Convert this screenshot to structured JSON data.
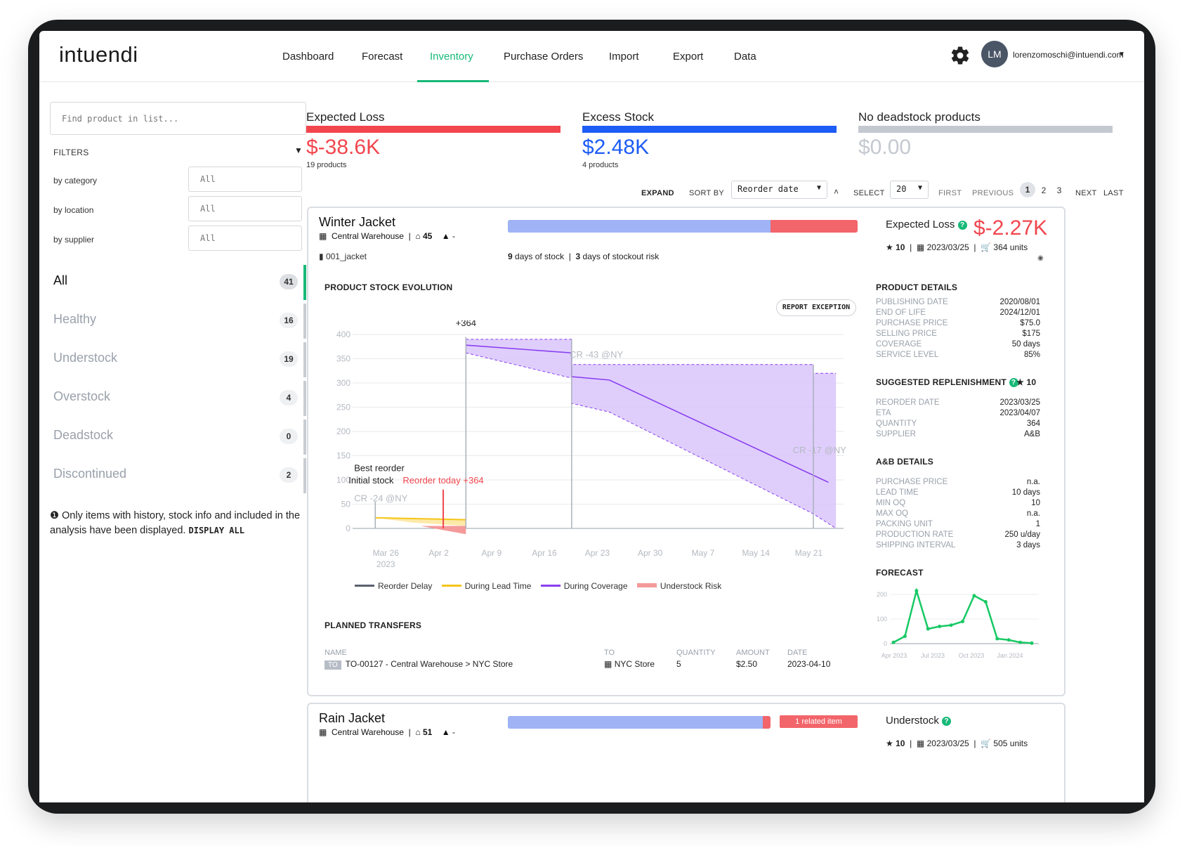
{
  "app": {
    "logo": "intuendi",
    "nav": [
      "Dashboard",
      "Forecast",
      "Inventory",
      "Purchase Orders",
      "Import",
      "Export",
      "Data"
    ],
    "active_nav": "Inventory",
    "user_initials": "LM",
    "user_email": "lorenzomoschi@intuendi.com",
    "accent_color": "#17b978"
  },
  "sidebar": {
    "search_placeholder": "Find product in list...",
    "filters_label": "FILTERS",
    "filters": [
      {
        "label": "by category",
        "value": "All"
      },
      {
        "label": "by location",
        "value": "All"
      },
      {
        "label": "by supplier",
        "value": "All"
      }
    ],
    "categories": [
      {
        "label": "All",
        "count": "41",
        "active": true
      },
      {
        "label": "Healthy",
        "count": "16"
      },
      {
        "label": "Understock",
        "count": "19"
      },
      {
        "label": "Overstock",
        "count": "4"
      },
      {
        "label": "Deadstock",
        "count": "0"
      },
      {
        "label": "Discontinued",
        "count": "2"
      }
    ],
    "note": "Only items with history, stock info and included in the analysis have been displayed.",
    "note_action": "DISPLAY ALL"
  },
  "kpis": [
    {
      "title": "Expected Loss",
      "value": "$-38.6K",
      "sub": "19 products",
      "color": "#f2464e"
    },
    {
      "title": "Excess Stock",
      "value": "$2.48K",
      "sub": "4 products",
      "color": "#1d5cf5"
    },
    {
      "title": "No deadstock products",
      "value": "$0.00",
      "sub": "",
      "color": "#c4c9d0"
    }
  ],
  "toolbar": {
    "expand": "EXPAND",
    "sort_by": "SORT BY",
    "sort_value": "Reorder date",
    "select": "SELECT",
    "select_value": "20",
    "first": "FIRST",
    "previous": "PREVIOUS",
    "pages": [
      "1",
      "2",
      "3"
    ],
    "current_page": "1",
    "next": "NEXT",
    "last": "LAST"
  },
  "product": {
    "name": "Winter Jacket",
    "warehouse": "Central Warehouse",
    "stock_count": "45",
    "third": "-",
    "sku": "001_jacket",
    "days_of_stock": "9",
    "days_of_stock_label": "days of stock",
    "days_stockout": "3",
    "days_stockout_label": "days of stockout risk",
    "stock_bar_fraction": 0.75,
    "status_label": "Expected Loss",
    "status_value": "$-2.27K",
    "rating": "10",
    "date": "2023/03/25",
    "units": "364 units",
    "report_exception": "REPORT EXCEPTION",
    "stock_evolution_title": "PRODUCT STOCK EVOLUTION",
    "product_details_title": "PRODUCT DETAILS",
    "product_details": [
      {
        "k": "PUBLISHING DATE",
        "v": "2020/08/01"
      },
      {
        "k": "END OF LIFE",
        "v": "2024/12/01"
      },
      {
        "k": "PURCHASE PRICE",
        "v": "$75.0"
      },
      {
        "k": "SELLING PRICE",
        "v": "$175"
      },
      {
        "k": "COVERAGE",
        "v": "50 days"
      },
      {
        "k": "SERVICE LEVEL",
        "v": "85%"
      }
    ],
    "replenishment_title": "SUGGESTED REPLENISHMENT",
    "replenishment_rating": "10",
    "replenishment": [
      {
        "k": "REORDER DATE",
        "v": "2023/03/25"
      },
      {
        "k": "ETA",
        "v": "2023/04/07"
      },
      {
        "k": "QUANTITY",
        "v": "364"
      },
      {
        "k": "SUPPLIER",
        "v": "A&B"
      }
    ],
    "supplier_details_title": "A&B DETAILS",
    "supplier_details": [
      {
        "k": "PURCHASE PRICE",
        "v": "n.a."
      },
      {
        "k": "LEAD TIME",
        "v": "10 days"
      },
      {
        "k": "MIN OQ",
        "v": "10"
      },
      {
        "k": "MAX OQ",
        "v": "n.a."
      },
      {
        "k": "PACKING UNIT",
        "v": "1"
      },
      {
        "k": "PRODUCTION RATE",
        "v": "250 u/day"
      },
      {
        "k": "SHIPPING INTERVAL",
        "v": "3 days"
      }
    ],
    "forecast_title": "FORECAST",
    "transfers_title": "PLANNED TRANSFERS",
    "transfer_headers": {
      "name": "NAME",
      "to": "TO",
      "quantity": "QUANTITY",
      "amount": "AMOUNT",
      "date": "DATE"
    },
    "transfer": {
      "badge": "TO",
      "name": "TO-00127 - Central Warehouse > NYC Store",
      "to": "NYC Store",
      "quantity": "5",
      "amount": "$2.50",
      "date": "2023-04-10"
    }
  },
  "product2": {
    "name": "Rain Jacket",
    "warehouse": "Central Warehouse",
    "stock_count": "51",
    "third": "-",
    "related": "1 related item",
    "status_label": "Understock",
    "rating": "10",
    "date": "2023/03/25",
    "units": "505 units",
    "stock_bar_fraction": 0.97
  },
  "chart_data": [
    {
      "type": "line",
      "title": "PRODUCT STOCK EVOLUTION",
      "x_ticks": [
        "Mar 26",
        "Apr 2",
        "Apr 9",
        "Apr 16",
        "Apr 23",
        "Apr 30",
        "May 7",
        "May 14",
        "May 21"
      ],
      "x_sub_label": "2023",
      "ylim": [
        0,
        400
      ],
      "y_ticks": [
        0,
        50,
        100,
        150,
        200,
        250,
        300,
        350,
        400
      ],
      "grid": true,
      "legend_position": "bottom",
      "series": [
        {
          "name": "Reorder Delay",
          "color": "#5a6270"
        },
        {
          "name": "During Lead Time",
          "color": "#f5c518",
          "points": [
            [
              "2023-03-26",
              22
            ],
            [
              "2023-04-07",
              18
            ]
          ]
        },
        {
          "name": "During Coverage",
          "color": "#8a3ff0",
          "points": [
            [
              "2023-04-07",
              378
            ],
            [
              "2023-04-21",
              362
            ],
            [
              "2023-04-21",
              313
            ],
            [
              "2023-04-26",
              306
            ],
            [
              "2023-05-25",
              95
            ]
          ]
        },
        {
          "name": "Understock Risk",
          "color": "#f59a9a"
        }
      ],
      "coverage_band_upper": [
        [
          "2023-04-07",
          390
        ],
        [
          "2023-04-21",
          390
        ],
        [
          "2023-04-21",
          338
        ],
        [
          "2023-05-23",
          338
        ],
        [
          "2023-05-23",
          320
        ],
        [
          "2023-05-26",
          320
        ]
      ],
      "coverage_band_lower": [
        [
          "2023-04-07",
          362
        ],
        [
          "2023-04-21",
          310
        ],
        [
          "2023-04-21",
          258
        ],
        [
          "2023-04-26",
          240
        ],
        [
          "2023-05-23",
          30
        ],
        [
          "2023-05-26",
          0
        ]
      ],
      "vertical_markers": [
        {
          "date": "2023-03-26",
          "label": "Best reorder"
        },
        {
          "date": "2023-04-07",
          "label": "+364"
        },
        {
          "date": "2023-04-21"
        },
        {
          "date": "2023-05-23"
        }
      ],
      "annotations": [
        {
          "text": "Initial stock",
          "date": "2023-03-26",
          "y": 100
        },
        {
          "text": "CR -24 @NY",
          "date": "2023-03-26",
          "y": 60
        },
        {
          "text": "Reorder today +364",
          "date": "2023-04-04",
          "y": 100,
          "color": "#f2464e"
        },
        {
          "text": "CR -43 @NY",
          "date": "2023-04-24",
          "y": 352
        },
        {
          "text": "CR -17 @NY",
          "date": "2023-05-24",
          "y": 155
        }
      ],
      "reorder_today": {
        "date": "2023-04-04",
        "value": 364
      }
    },
    {
      "type": "line",
      "title": "FORECAST",
      "x_ticks": [
        "Apr 2023",
        "Jul 2023",
        "Oct 2023",
        "Jan 2024"
      ],
      "y_ticks": [
        0,
        100,
        200
      ],
      "ylim": [
        0,
        220
      ],
      "series": [
        {
          "name": "",
          "color": "#17c964",
          "values": [
            5,
            30,
            215,
            60,
            70,
            75,
            90,
            195,
            170,
            20,
            15,
            5,
            2
          ]
        }
      ]
    }
  ]
}
